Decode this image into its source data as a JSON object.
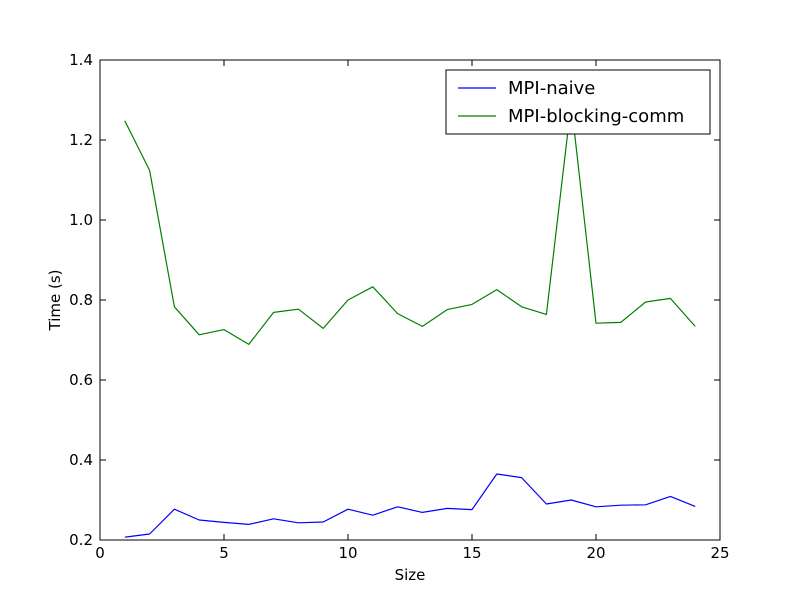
{
  "chart_data": {
    "type": "line",
    "title": "",
    "xlabel": "Size",
    "ylabel": "Time (s)",
    "xlim": [
      0,
      25
    ],
    "ylim": [
      0.2,
      1.4
    ],
    "xticks": [
      0,
      5,
      10,
      15,
      20,
      25
    ],
    "yticks": [
      0.2,
      0.4,
      0.6,
      0.8,
      1.0,
      1.2,
      1.4
    ],
    "xtick_labels": [
      "0",
      "5",
      "10",
      "15",
      "20",
      "25"
    ],
    "ytick_labels": [
      "0.2",
      "0.4",
      "0.6",
      "0.8",
      "1.0",
      "1.2",
      "1.4"
    ],
    "grid": false,
    "legend_position": "top-right",
    "x": [
      1,
      2,
      3,
      4,
      5,
      6,
      7,
      8,
      9,
      10,
      11,
      12,
      13,
      14,
      15,
      16,
      17,
      18,
      19,
      20,
      21,
      22,
      23,
      24
    ],
    "series": [
      {
        "name": "MPI-naive",
        "color": "#0000ff",
        "values": [
          0.207,
          0.215,
          0.277,
          0.25,
          0.244,
          0.239,
          0.253,
          0.243,
          0.245,
          0.277,
          0.262,
          0.283,
          0.269,
          0.279,
          0.276,
          0.365,
          0.356,
          0.29,
          0.3,
          0.283,
          0.287,
          0.288,
          0.309,
          0.284
        ]
      },
      {
        "name": "MPI-blocking-comm",
        "color": "#008000",
        "values": [
          1.248,
          1.124,
          0.783,
          0.713,
          0.726,
          0.689,
          0.769,
          0.777,
          0.729,
          0.8,
          0.833,
          0.766,
          0.734,
          0.776,
          0.789,
          0.826,
          0.783,
          0.764,
          1.292,
          0.742,
          0.744,
          0.795,
          0.804,
          0.734
        ]
      }
    ]
  }
}
